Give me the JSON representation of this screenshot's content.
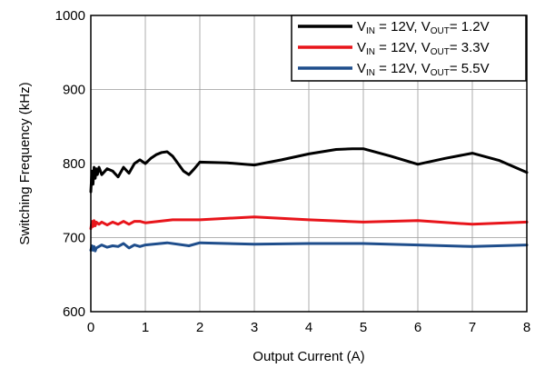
{
  "chart_data": {
    "type": "line",
    "xlabel": "Output Current (A)",
    "ylabel": "Switching Frequency (kHz)",
    "xlim": [
      0,
      8
    ],
    "ylim": [
      600,
      1000
    ],
    "x_ticks": [
      "0",
      "1",
      "2",
      "3",
      "4",
      "5",
      "6",
      "7",
      "8"
    ],
    "y_ticks": [
      "600",
      "700",
      "800",
      "900",
      "1000"
    ],
    "grid": true,
    "legend_position": "top-right",
    "series": [
      {
        "name_parts": {
          "v1": "V",
          "s1": "IN",
          "mid": " = 12V, V",
          "s2": "OUT",
          "end": "= 1.2V"
        },
        "color": "#000000",
        "x": [
          0.0,
          0.02,
          0.04,
          0.06,
          0.08,
          0.1,
          0.12,
          0.15,
          0.2,
          0.3,
          0.4,
          0.5,
          0.6,
          0.7,
          0.8,
          0.9,
          1.0,
          1.1,
          1.2,
          1.3,
          1.4,
          1.5,
          1.6,
          1.7,
          1.8,
          1.9,
          2.0,
          2.5,
          3.0,
          3.5,
          4.0,
          4.5,
          4.8,
          5.0,
          5.5,
          6.0,
          6.5,
          7.0,
          7.5,
          8.0
        ],
        "y": [
          762,
          790,
          772,
          795,
          780,
          793,
          785,
          795,
          785,
          793,
          790,
          782,
          795,
          787,
          800,
          805,
          800,
          807,
          812,
          815,
          816,
          810,
          800,
          790,
          785,
          793,
          802,
          801,
          798,
          805,
          813,
          819,
          820,
          820,
          810,
          799,
          807,
          814,
          804,
          788
        ]
      },
      {
        "name_parts": {
          "v1": "V",
          "s1": "IN",
          "mid": " = 12V, V",
          "s2": "OUT",
          "end": "= 3.3V"
        },
        "color": "#e8151b",
        "x": [
          0.0,
          0.02,
          0.04,
          0.06,
          0.08,
          0.1,
          0.15,
          0.2,
          0.3,
          0.4,
          0.5,
          0.6,
          0.7,
          0.8,
          0.9,
          1.0,
          1.5,
          2.0,
          3.0,
          4.0,
          5.0,
          6.0,
          7.0,
          8.0
        ],
        "y": [
          712,
          722,
          715,
          723,
          716,
          721,
          718,
          721,
          717,
          721,
          718,
          722,
          718,
          722,
          722,
          720,
          724,
          724,
          728,
          724,
          721,
          723,
          718,
          721
        ]
      },
      {
        "name_parts": {
          "v1": "V",
          "s1": "IN",
          "mid": " = 12V, V",
          "s2": "OUT",
          "end": "= 5.5V"
        },
        "color": "#1f4e8c",
        "x": [
          0.0,
          0.02,
          0.04,
          0.06,
          0.08,
          0.1,
          0.2,
          0.3,
          0.4,
          0.5,
          0.6,
          0.7,
          0.8,
          0.9,
          1.0,
          1.4,
          1.8,
          2.0,
          3.0,
          4.0,
          5.0,
          6.0,
          7.0,
          8.0
        ],
        "y": [
          683,
          689,
          683,
          688,
          682,
          686,
          690,
          687,
          689,
          688,
          692,
          686,
          690,
          688,
          690,
          693,
          689,
          693,
          691,
          692,
          692,
          690,
          688,
          690
        ]
      }
    ]
  }
}
